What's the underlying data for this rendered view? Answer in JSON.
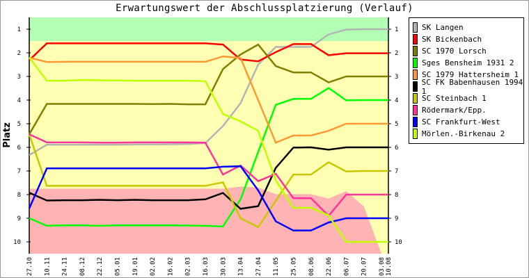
{
  "chart_data": {
    "type": "line",
    "title": "Erwartungswert der Abschlussplatzierung (Verlauf)",
    "ylabel": "Platz",
    "xlabel": "",
    "ylim": [
      0.5,
      10.5
    ],
    "y_inverted": true,
    "yticks": [
      1,
      2,
      3,
      4,
      5,
      6,
      7,
      8,
      9,
      10
    ],
    "categories": [
      "27.10",
      "10.11",
      "24.11",
      "08.12",
      "22.12",
      "05.01",
      "19.01",
      "02.02",
      "16.02",
      "02.03",
      "16.03",
      "30.03",
      "13.04",
      "27.04",
      "11.05",
      "25.05",
      "08.06",
      "22.06",
      "06.07",
      "20.07",
      "03.08",
      "10.08"
    ],
    "legend_position": "right",
    "zones": {
      "promotion": {
        "color": "#b3ffb3",
        "upper_rank_boundary": 1.5
      },
      "middle": {
        "color": "#ffffb3"
      },
      "relegation": {
        "color": "#ffb3b3",
        "boundary": [
          7.75,
          7.75,
          7.75,
          7.75,
          7.75,
          7.75,
          7.75,
          7.75,
          7.75,
          7.75,
          7.75,
          7.75,
          7.66,
          7.7,
          7.98,
          7.98,
          7.98,
          8.17,
          7.85,
          8.5,
          10.5,
          10.5
        ]
      }
    },
    "series": [
      {
        "name": "SK Langen",
        "color": "#b4b4b4",
        "values": [
          6.33,
          5.89,
          5.89,
          5.89,
          5.89,
          5.89,
          5.88,
          5.88,
          5.87,
          5.86,
          5.82,
          5.1,
          4.13,
          2.5,
          1.75,
          1.75,
          1.75,
          1.22,
          1.02,
          1.0,
          1.0,
          1.0
        ]
      },
      {
        "name": "SK Bickenbach",
        "color": "#ff0000",
        "values": [
          2.31,
          1.6,
          1.6,
          1.6,
          1.6,
          1.6,
          1.6,
          1.6,
          1.6,
          1.6,
          1.6,
          1.65,
          2.28,
          2.36,
          1.97,
          1.63,
          1.63,
          2.1,
          2.02,
          2.02,
          2.02,
          2.02
        ]
      },
      {
        "name": "SC 1970 Lorsch",
        "color": "#808000",
        "values": [
          5.45,
          4.16,
          4.16,
          4.16,
          4.16,
          4.16,
          4.16,
          4.17,
          4.16,
          4.18,
          4.18,
          2.69,
          2.07,
          1.65,
          2.56,
          2.83,
          2.83,
          3.25,
          3.0,
          3.0,
          3.0,
          3.0
        ]
      },
      {
        "name": "Sges Bensheim 1931 2",
        "color": "#00ff00",
        "values": [
          9.0,
          9.32,
          9.3,
          9.3,
          9.32,
          9.3,
          9.3,
          9.3,
          9.3,
          9.31,
          9.32,
          9.35,
          8.2,
          6.2,
          4.2,
          3.95,
          3.95,
          3.49,
          4.01,
          4.0,
          4.0,
          4.0
        ]
      },
      {
        "name": "SC 1979 Hattersheim 1",
        "color": "#ff9933",
        "values": [
          2.2,
          2.39,
          2.38,
          2.38,
          2.38,
          2.38,
          2.38,
          2.38,
          2.38,
          2.38,
          2.38,
          2.15,
          2.22,
          4.0,
          5.8,
          5.5,
          5.5,
          5.3,
          5.0,
          5.0,
          5.0,
          5.0
        ]
      },
      {
        "name": "SC FK Babenhausen 1994 1",
        "color": "#000000",
        "values": [
          7.92,
          8.25,
          8.24,
          8.24,
          8.22,
          8.24,
          8.22,
          8.24,
          8.24,
          8.24,
          8.2,
          7.93,
          8.6,
          8.49,
          6.87,
          6.01,
          6.0,
          6.1,
          6.0,
          6.0,
          6.0,
          6.0
        ]
      },
      {
        "name": "SC Steinbach 1",
        "color": "#c8c800",
        "values": [
          5.45,
          7.63,
          7.63,
          7.63,
          7.63,
          7.63,
          7.63,
          7.63,
          7.63,
          7.63,
          7.63,
          7.48,
          9.0,
          9.38,
          8.26,
          7.15,
          7.15,
          6.63,
          7.02,
          7.0,
          7.0,
          7.0
        ]
      },
      {
        "name": "Rödermark/Epp.",
        "color": "#ff3399",
        "values": [
          5.45,
          5.79,
          5.79,
          5.79,
          5.8,
          5.8,
          5.79,
          5.79,
          5.79,
          5.79,
          5.8,
          7.15,
          6.77,
          7.43,
          7.12,
          8.15,
          8.15,
          8.9,
          8.0,
          8.0,
          8.0,
          8.0
        ]
      },
      {
        "name": "SC Frankfurt-West",
        "color": "#0000ff",
        "values": [
          8.59,
          6.89,
          6.89,
          6.89,
          6.89,
          6.89,
          6.89,
          6.89,
          6.89,
          6.89,
          6.89,
          6.82,
          6.8,
          7.82,
          9.13,
          9.52,
          9.52,
          9.18,
          9.0,
          9.0,
          9.0,
          9.0
        ]
      },
      {
        "name": "Mörlen.-Birkenau 2",
        "color": "#c0ff00",
        "values": [
          2.2,
          3.18,
          3.18,
          3.15,
          3.16,
          3.17,
          3.18,
          3.18,
          3.18,
          3.18,
          3.2,
          4.59,
          4.9,
          5.3,
          7.4,
          8.56,
          8.56,
          8.88,
          10.0,
          10.0,
          10.0,
          10.0
        ]
      }
    ]
  }
}
